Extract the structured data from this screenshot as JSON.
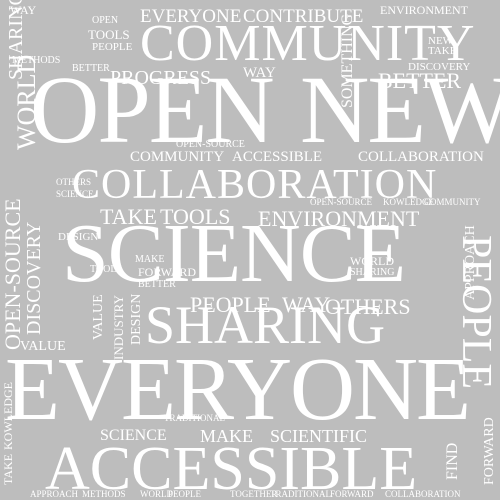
{
  "background_color": "#bdbdbd",
  "word_color": "#ffffff",
  "words": {
    "community": "Community",
    "open": "Open",
    "new": "New",
    "collaboration": "Collaboration",
    "science": "Science",
    "sharing": "Sharing",
    "everyone": "Everyone",
    "accessible": "Accessible",
    "people": "People",
    "progress": "Progress",
    "better": "Better",
    "contribute": "Contribute",
    "take": "Take",
    "tools": "Tools",
    "environment": "Environment",
    "open_source": "Open-Source",
    "world": "World",
    "way": "Way",
    "discovery": "Discovery",
    "make": "Make",
    "scientific": "Scientific",
    "kowledge": "Kowledge",
    "value": "Value",
    "design": "Design",
    "industry": "Industry",
    "find": "Find",
    "approach": "Approach",
    "methods": "Methods",
    "forward": "Forward",
    "together": "Together",
    "traditional": "Traditional",
    "something": "Something",
    "others": "Others"
  }
}
